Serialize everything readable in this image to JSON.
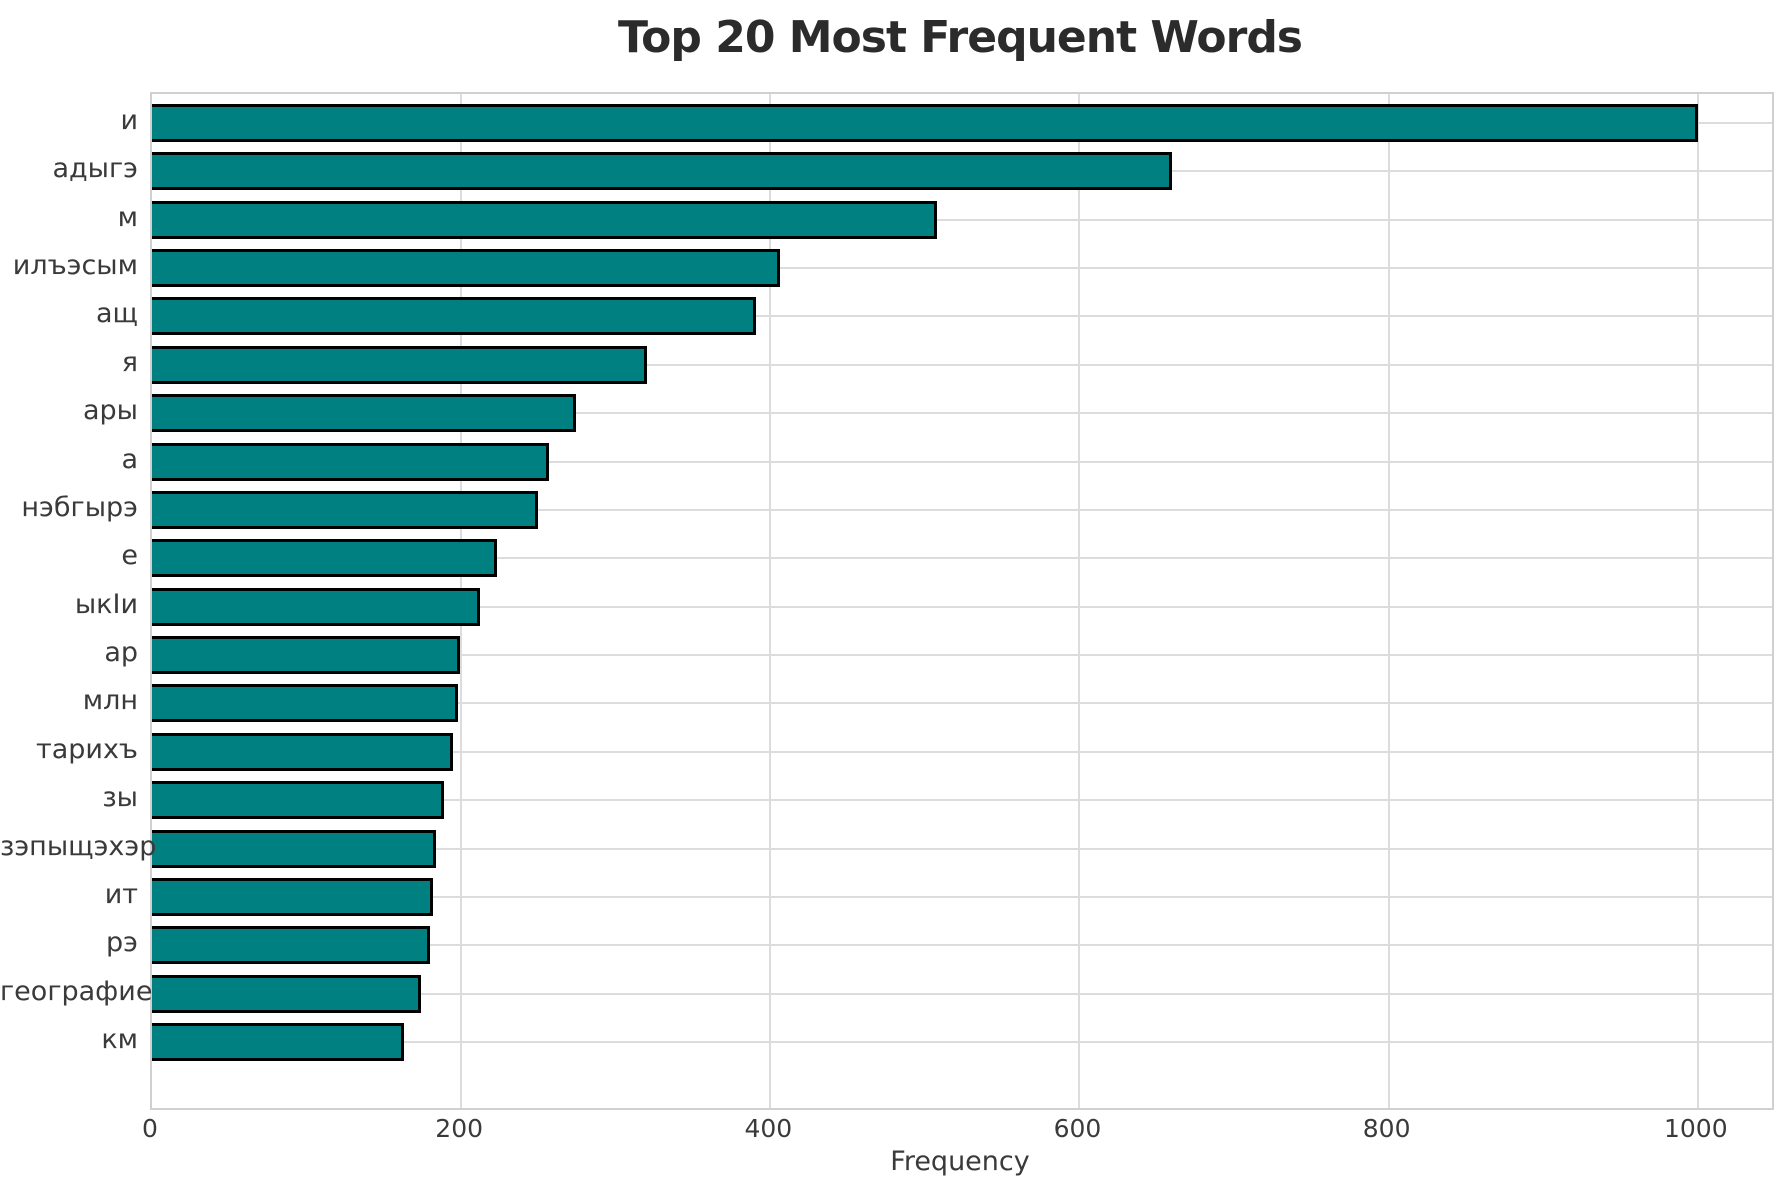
{
  "chart_data": {
    "type": "bar",
    "orientation": "horizontal",
    "title": "Top 20 Most Frequent Words",
    "xlabel": "Frequency",
    "ylabel": "",
    "categories": [
      "и",
      "адыгэ",
      "м",
      "илъэсым",
      "ащ",
      "я",
      "ары",
      "а",
      "нэбгырэ",
      "е",
      "ыкIи",
      "ар",
      "млн",
      "тарихъ",
      "зы",
      "зэпыщэхэр",
      "ит",
      "рэ",
      "географие",
      "км"
    ],
    "values": [
      1000,
      660,
      508,
      406,
      391,
      320,
      274,
      257,
      250,
      223,
      212,
      199,
      198,
      195,
      189,
      184,
      182,
      180,
      174,
      163
    ],
    "xticks": [
      0,
      200,
      400,
      600,
      800,
      1000
    ],
    "xlim": [
      0,
      1048
    ],
    "grid": true,
    "legend": "none",
    "bar_color": "#008080",
    "bar_edge_color": "#000000",
    "grid_color": "#dcdcdc"
  }
}
